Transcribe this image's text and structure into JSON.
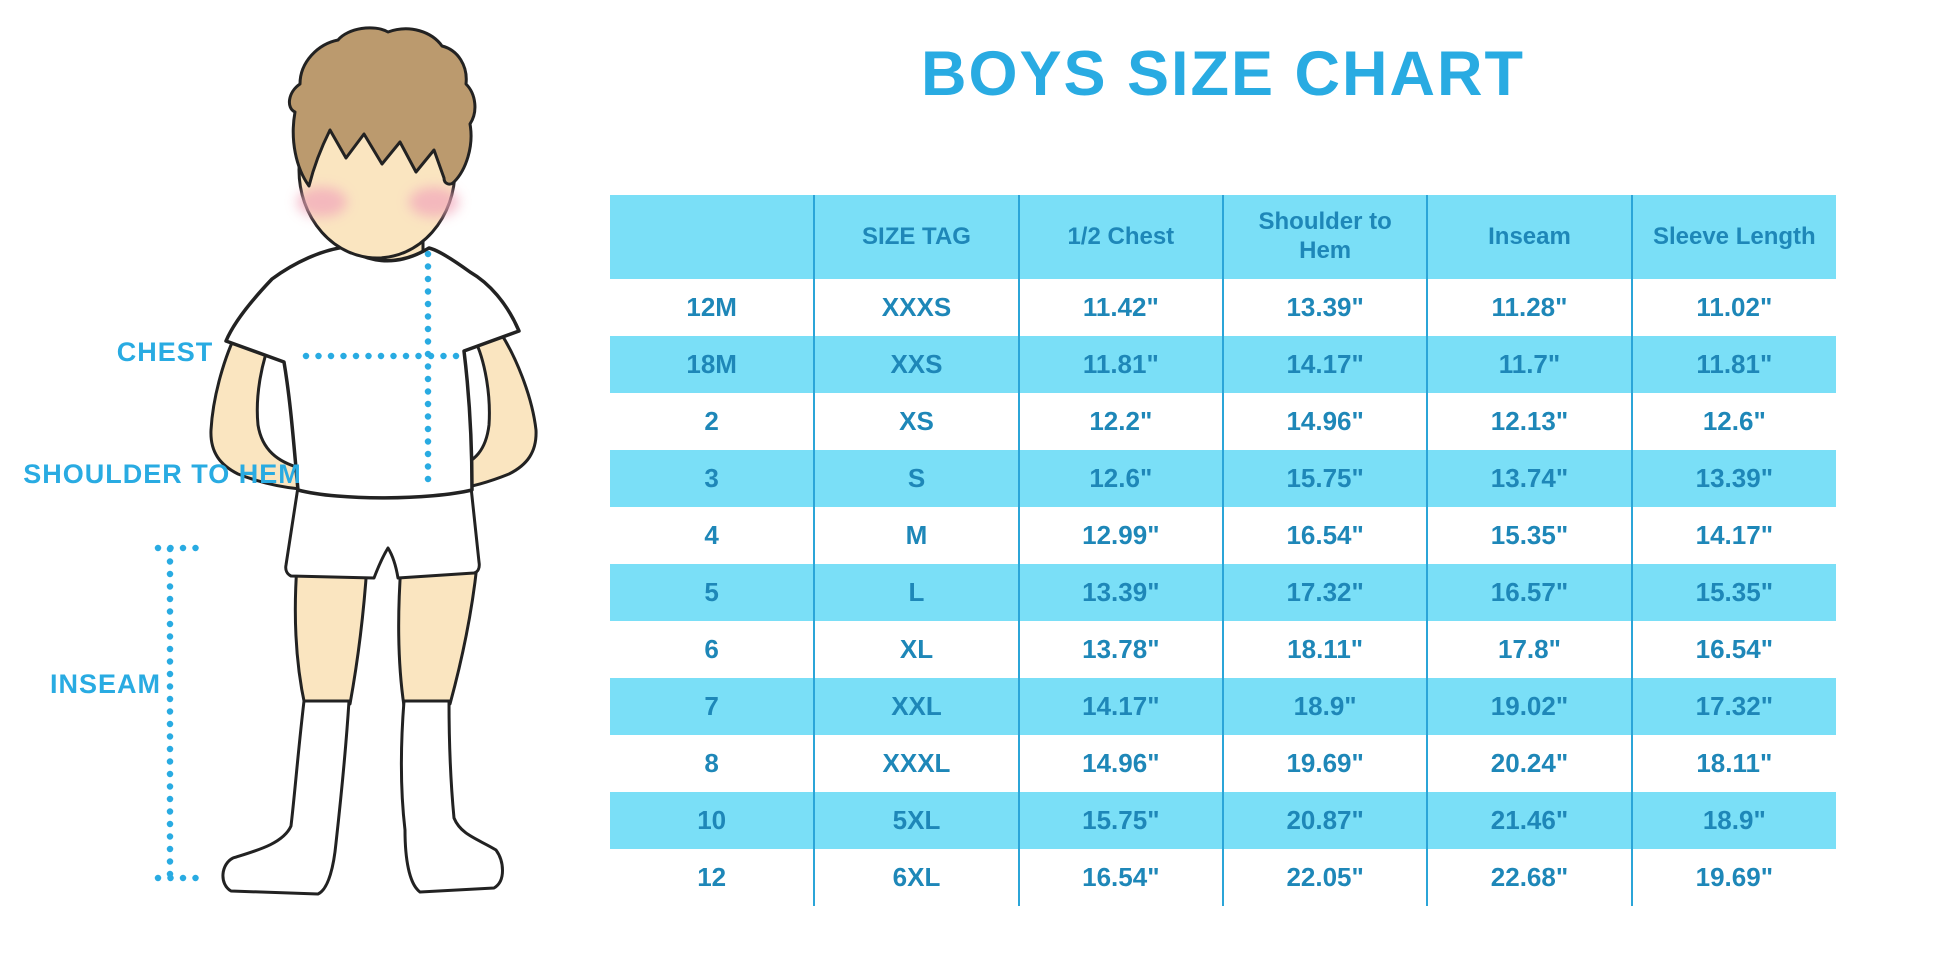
{
  "title": "BOYS SIZE CHART",
  "colors": {
    "accent_blue": "#29ABE2",
    "table_fill_light_blue": "#7ADFF7",
    "table_text_blue": "#1E87B8",
    "table_separator_blue": "#2BA5D8",
    "skin": "#FAE5C0",
    "hair_brown": "#BB9A6E",
    "blush_pink": "#F2A9BC",
    "outline": "#222222"
  },
  "figure": {
    "labels": {
      "chest": "CHEST",
      "shoulder_to_hem": "SHOULDER TO HEM",
      "inseam": "INSEAM"
    }
  },
  "chart_data": {
    "type": "table",
    "title": "BOYS SIZE CHART",
    "units": "inches",
    "columns": [
      "",
      "SIZE TAG",
      "1/2 Chest",
      "Shoulder to Hem",
      "Inseam",
      "Sleeve Length"
    ],
    "rows": [
      [
        "12M",
        "XXXS",
        "11.42\"",
        "13.39\"",
        "11.28\"",
        "11.02\""
      ],
      [
        "18M",
        "XXS",
        "11.81\"",
        "14.17\"",
        "11.7\"",
        "11.81\""
      ],
      [
        "2",
        "XS",
        "12.2\"",
        "14.96\"",
        "12.13\"",
        "12.6\""
      ],
      [
        "3",
        "S",
        "12.6\"",
        "15.75\"",
        "13.74\"",
        "13.39\""
      ],
      [
        "4",
        "M",
        "12.99\"",
        "16.54\"",
        "15.35\"",
        "14.17\""
      ],
      [
        "5",
        "L",
        "13.39\"",
        "17.32\"",
        "16.57\"",
        "15.35\""
      ],
      [
        "6",
        "XL",
        "13.78\"",
        "18.11\"",
        "17.8\"",
        "16.54\""
      ],
      [
        "7",
        "XXL",
        "14.17\"",
        "18.9\"",
        "19.02\"",
        "17.32\""
      ],
      [
        "8",
        "XXXL",
        "14.96\"",
        "19.69\"",
        "20.24\"",
        "18.11\""
      ],
      [
        "10",
        "5XL",
        "15.75\"",
        "20.87\"",
        "21.46\"",
        "18.9\""
      ],
      [
        "12",
        "6XL",
        "16.54\"",
        "22.05\"",
        "22.68\"",
        "19.69\""
      ]
    ],
    "highlighted_row_indices": [
      1,
      3,
      5,
      7,
      9
    ],
    "grid": "vertical-separators-only",
    "legend_position": "none"
  }
}
